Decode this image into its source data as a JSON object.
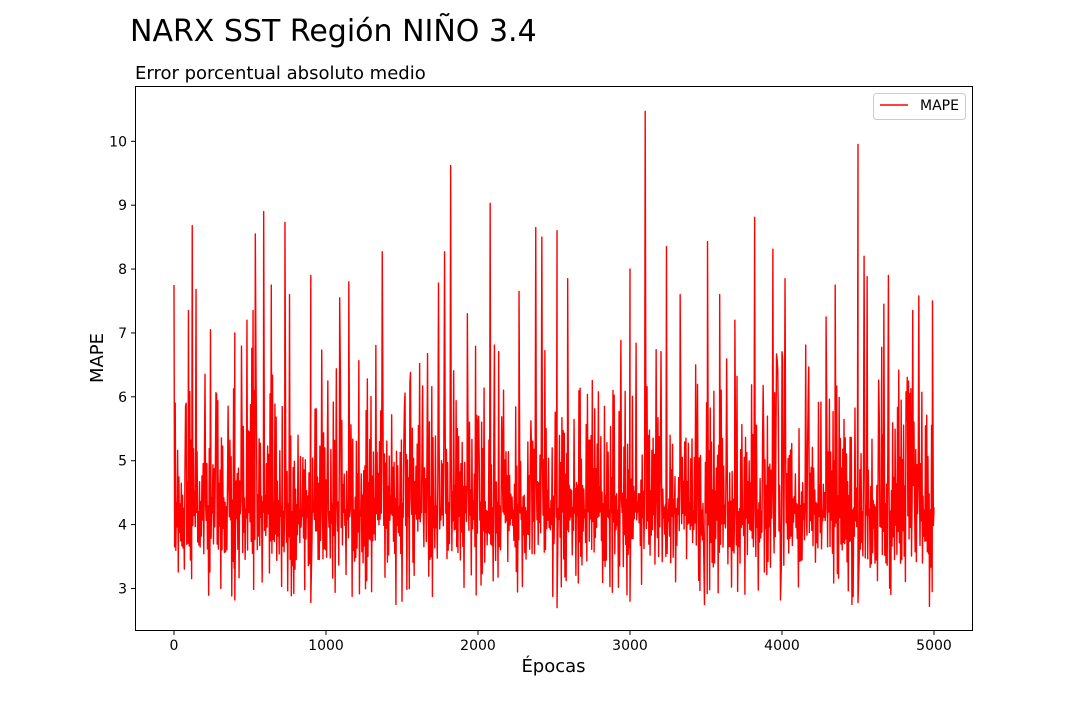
{
  "figure": {
    "suptitle": "NARX SST Región NIÑO 3.4"
  },
  "chart_data": {
    "type": "line",
    "title": "Error porcentual absoluto medio",
    "xlabel": "Épocas",
    "ylabel": "MAPE",
    "xlim": [
      -250,
      5250
    ],
    "ylim": [
      2.35,
      10.85
    ],
    "xticks": [
      0,
      1000,
      2000,
      3000,
      4000,
      5000
    ],
    "yticks": [
      3,
      4,
      5,
      6,
      7,
      8,
      9,
      10
    ],
    "grid": false,
    "legend": {
      "placement": "top-right",
      "entries": [
        "MAPE"
      ]
    },
    "series": [
      {
        "name": "MAPE",
        "color": "#ff0000",
        "x_range": [
          0,
          5000
        ],
        "baseline_range": [
          2.8,
          6.2
        ],
        "typical_level": 4.2,
        "peaks": [
          {
            "x": 0,
            "y": 7.75
          },
          {
            "x": 95,
            "y": 7.35
          },
          {
            "x": 120,
            "y": 8.68
          },
          {
            "x": 145,
            "y": 7.68
          },
          {
            "x": 240,
            "y": 7.05
          },
          {
            "x": 400,
            "y": 7.0
          },
          {
            "x": 480,
            "y": 7.2
          },
          {
            "x": 520,
            "y": 7.35
          },
          {
            "x": 535,
            "y": 8.55
          },
          {
            "x": 590,
            "y": 8.9
          },
          {
            "x": 640,
            "y": 7.75
          },
          {
            "x": 730,
            "y": 8.73
          },
          {
            "x": 760,
            "y": 7.6
          },
          {
            "x": 900,
            "y": 7.9
          },
          {
            "x": 1090,
            "y": 7.55
          },
          {
            "x": 1150,
            "y": 7.8
          },
          {
            "x": 1370,
            "y": 8.27
          },
          {
            "x": 1740,
            "y": 7.78
          },
          {
            "x": 1780,
            "y": 8.27
          },
          {
            "x": 1820,
            "y": 9.62
          },
          {
            "x": 1930,
            "y": 7.3
          },
          {
            "x": 2080,
            "y": 9.03
          },
          {
            "x": 2270,
            "y": 7.65
          },
          {
            "x": 2380,
            "y": 8.65
          },
          {
            "x": 2420,
            "y": 8.5
          },
          {
            "x": 2520,
            "y": 8.6
          },
          {
            "x": 2590,
            "y": 7.85
          },
          {
            "x": 3000,
            "y": 8.0
          },
          {
            "x": 3100,
            "y": 10.47
          },
          {
            "x": 3240,
            "y": 8.35
          },
          {
            "x": 3330,
            "y": 7.6
          },
          {
            "x": 3510,
            "y": 8.43
          },
          {
            "x": 3590,
            "y": 7.6
          },
          {
            "x": 3690,
            "y": 7.2
          },
          {
            "x": 3820,
            "y": 8.81
          },
          {
            "x": 3940,
            "y": 8.31
          },
          {
            "x": 4020,
            "y": 7.85
          },
          {
            "x": 4290,
            "y": 7.25
          },
          {
            "x": 4350,
            "y": 7.75
          },
          {
            "x": 4500,
            "y": 9.95
          },
          {
            "x": 4540,
            "y": 8.2
          },
          {
            "x": 4560,
            "y": 7.88
          },
          {
            "x": 4670,
            "y": 7.45
          },
          {
            "x": 4700,
            "y": 7.9
          },
          {
            "x": 4860,
            "y": 7.35
          },
          {
            "x": 4900,
            "y": 7.58
          },
          {
            "x": 4990,
            "y": 7.5
          }
        ],
        "troughs": [
          {
            "x": 400,
            "y": 2.82
          },
          {
            "x": 900,
            "y": 2.78
          },
          {
            "x": 1460,
            "y": 2.75
          },
          {
            "x": 1500,
            "y": 2.8
          },
          {
            "x": 2520,
            "y": 2.7
          },
          {
            "x": 3000,
            "y": 2.8
          },
          {
            "x": 3490,
            "y": 2.75
          },
          {
            "x": 3990,
            "y": 2.82
          },
          {
            "x": 4460,
            "y": 2.75
          },
          {
            "x": 4500,
            "y": 2.78
          },
          {
            "x": 4970,
            "y": 2.72
          }
        ]
      }
    ]
  }
}
